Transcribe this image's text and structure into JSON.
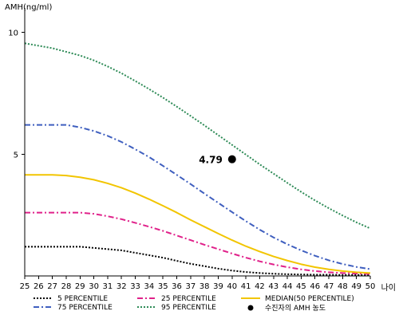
{
  "chart_data": {
    "type": "line",
    "ylabel": "AMH(ng/ml)",
    "xlabel": "나이",
    "ylim": [
      0,
      11
    ],
    "yticks": [
      5,
      10
    ],
    "xlim": [
      25,
      50
    ],
    "x": [
      25,
      26,
      27,
      28,
      29,
      30,
      31,
      32,
      33,
      34,
      35,
      36,
      37,
      38,
      39,
      40,
      41,
      42,
      43,
      44,
      45,
      46,
      47,
      48,
      49,
      50
    ],
    "series": [
      {
        "name": "5 PERCENTILE",
        "color": "#000000",
        "style": "dotted",
        "values": [
          1.2,
          1.2,
          1.2,
          1.2,
          1.2,
          1.15,
          1.1,
          1.05,
          0.95,
          0.85,
          0.75,
          0.62,
          0.5,
          0.4,
          0.3,
          0.22,
          0.16,
          0.12,
          0.09,
          0.07,
          0.06,
          0.05,
          0.05,
          0.04,
          0.04,
          0.03
        ]
      },
      {
        "name": "25 PERCENTILE",
        "color": "#e0218a",
        "style": "dash-dot",
        "values": [
          2.6,
          2.6,
          2.6,
          2.6,
          2.6,
          2.55,
          2.45,
          2.33,
          2.18,
          2.02,
          1.85,
          1.66,
          1.47,
          1.28,
          1.1,
          0.92,
          0.75,
          0.6,
          0.47,
          0.36,
          0.27,
          0.2,
          0.15,
          0.12,
          0.1,
          0.08
        ]
      },
      {
        "name": "MEDIAN(50 PERCENTILE)",
        "color": "#f2c500",
        "style": "solid",
        "values": [
          4.15,
          4.15,
          4.15,
          4.12,
          4.05,
          3.95,
          3.8,
          3.62,
          3.4,
          3.15,
          2.88,
          2.6,
          2.3,
          2.02,
          1.74,
          1.47,
          1.22,
          1.0,
          0.8,
          0.63,
          0.48,
          0.36,
          0.27,
          0.2,
          0.15,
          0.12
        ]
      },
      {
        "name": "75 PERCENTILE",
        "color": "#3f5fbf",
        "style": "dash-dot",
        "values": [
          6.2,
          6.2,
          6.2,
          6.2,
          6.1,
          5.95,
          5.75,
          5.5,
          5.2,
          4.88,
          4.52,
          4.15,
          3.77,
          3.38,
          3.0,
          2.62,
          2.25,
          1.9,
          1.58,
          1.3,
          1.05,
          0.83,
          0.64,
          0.49,
          0.37,
          0.28
        ]
      },
      {
        "name": "95 PERCENTILE",
        "color": "#2e8b57",
        "style": "dotted",
        "values": [
          9.55,
          9.45,
          9.35,
          9.2,
          9.05,
          8.85,
          8.6,
          8.32,
          8.0,
          7.67,
          7.32,
          6.95,
          6.57,
          6.18,
          5.78,
          5.38,
          4.98,
          4.58,
          4.2,
          3.82,
          3.45,
          3.1,
          2.78,
          2.48,
          2.2,
          1.95
        ]
      }
    ],
    "patient_point": {
      "x": 40,
      "y": 4.79,
      "label": "4.79",
      "color": "#000000"
    },
    "legend": {
      "placement": "bottom",
      "patient_label": "수진자의 AMH 농도"
    },
    "grid": false
  }
}
